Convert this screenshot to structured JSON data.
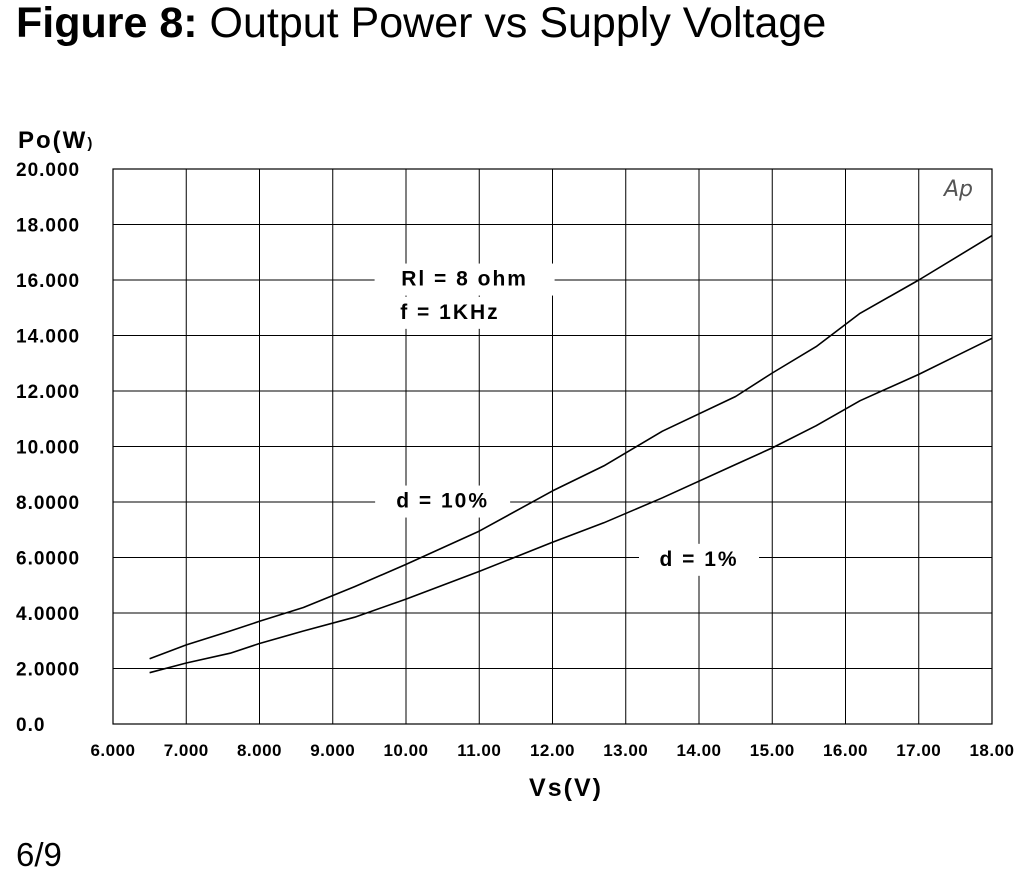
{
  "figure": {
    "label": "Figure 8:",
    "title": "Output Power vs Supply Voltage"
  },
  "page": "6/9",
  "chart_data": {
    "type": "line",
    "xlabel": "Vs(V)",
    "ylabel_main": "Po(W",
    "ylabel_paren": ")",
    "xlim": [
      6,
      18
    ],
    "ylim": [
      0,
      20
    ],
    "grid": true,
    "x_ticks": [
      6,
      7,
      8,
      9,
      10,
      11,
      12,
      13,
      14,
      15,
      16,
      17,
      18
    ],
    "x_tick_labels": [
      "6.000",
      "7.000",
      "8.000",
      "9.000",
      "10.00",
      "11.00",
      "12.00",
      "13.00",
      "14.00",
      "15.00",
      "16.00",
      "17.00",
      "18.00"
    ],
    "y_ticks": [
      0,
      2,
      4,
      6,
      8,
      10,
      12,
      14,
      16,
      18,
      20
    ],
    "y_tick_labels": [
      "0.0",
      "2.0000",
      "4.0000",
      "6.0000",
      "8.0000",
      "10.000",
      "12.000",
      "14.000",
      "16.000",
      "18.000",
      "20.000"
    ],
    "annotations": [
      {
        "text": "Rl = 8 ohm",
        "x": 10.8,
        "y": 15.8
      },
      {
        "text": "f = 1KHz",
        "x": 10.6,
        "y": 14.6
      },
      {
        "text": "d = 10%",
        "x": 10.5,
        "y": 7.8
      },
      {
        "text": "d = 1%",
        "x": 14.0,
        "y": 5.7
      }
    ],
    "logo_text": "Ap",
    "series": [
      {
        "id": "d10",
        "x": [
          6.5,
          7.0,
          7.6,
          8.0,
          8.6,
          9.3,
          10.0,
          11.0,
          12.0,
          12.7,
          13.5,
          14.5,
          15.0,
          15.6,
          16.2,
          17.0,
          17.5,
          18.0
        ],
        "values": [
          2.35,
          2.85,
          3.35,
          3.7,
          4.2,
          4.95,
          5.75,
          6.95,
          8.4,
          9.3,
          10.55,
          11.8,
          12.65,
          13.6,
          14.8,
          16.0,
          16.8,
          17.6
        ]
      },
      {
        "id": "d1",
        "x": [
          6.5,
          7.0,
          7.6,
          8.0,
          8.6,
          9.3,
          10.0,
          11.0,
          12.0,
          12.7,
          13.5,
          14.5,
          15.0,
          15.6,
          16.2,
          17.0,
          17.5,
          18.0
        ],
        "values": [
          1.85,
          2.2,
          2.55,
          2.9,
          3.35,
          3.85,
          4.5,
          5.5,
          6.55,
          7.25,
          8.15,
          9.35,
          9.95,
          10.75,
          11.65,
          12.6,
          13.25,
          13.9
        ]
      }
    ]
  }
}
